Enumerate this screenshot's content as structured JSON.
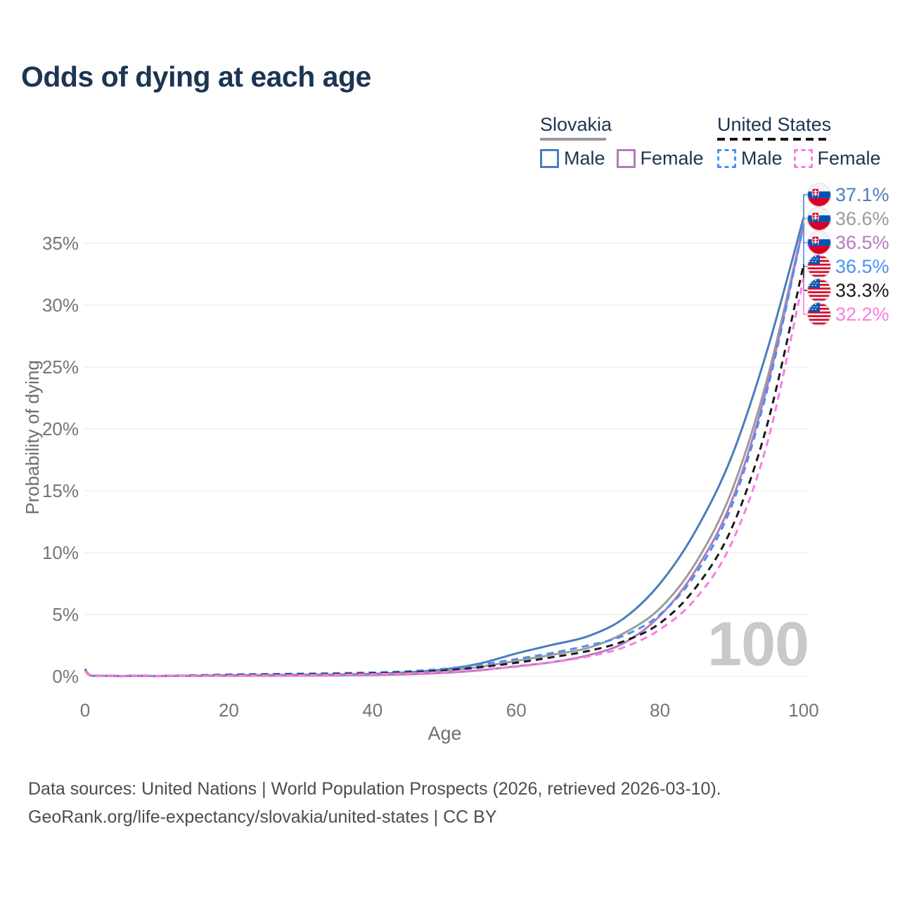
{
  "title": "Odds of dying at each age",
  "legend": {
    "groups": [
      {
        "label": "Slovakia",
        "line_style": "solid",
        "items": [
          {
            "label": "Male"
          },
          {
            "label": "Female"
          }
        ]
      },
      {
        "label": "United States",
        "line_style": "dashed",
        "items": [
          {
            "label": "Male"
          },
          {
            "label": "Female"
          }
        ]
      }
    ]
  },
  "chart_data": {
    "type": "line",
    "title": "Odds of dying at each age",
    "xlabel": "Age",
    "ylabel": "Probability of dying",
    "xlim": [
      0,
      100
    ],
    "ylim": [
      0,
      37.5
    ],
    "xticks": [
      0,
      20,
      40,
      60,
      80,
      100
    ],
    "yticks": [
      0,
      5,
      10,
      15,
      20,
      25,
      30,
      35
    ],
    "ytick_format": "percent",
    "grid": true,
    "legend_position": "top-right",
    "watermark": "100",
    "x": [
      0,
      1,
      5,
      10,
      15,
      20,
      25,
      30,
      35,
      40,
      45,
      50,
      55,
      60,
      65,
      70,
      75,
      80,
      85,
      90,
      95,
      100
    ],
    "series": [
      {
        "name": "Slovakia Male",
        "country": "Slovakia",
        "sex": "Male",
        "color": "#4b7dbd",
        "dash": "solid",
        "flag": "sk",
        "end_label": "37.1%",
        "values": [
          0.55,
          0.05,
          0.02,
          0.02,
          0.05,
          0.09,
          0.11,
          0.13,
          0.16,
          0.21,
          0.33,
          0.57,
          1.05,
          1.85,
          2.55,
          3.25,
          4.7,
          7.5,
          11.8,
          17.8,
          26.5,
          37.1
        ]
      },
      {
        "name": "Slovakia Overall",
        "country": "Slovakia",
        "sex": "Both",
        "color": "#9b9b9b",
        "dash": "solid",
        "flag": "sk",
        "end_label": "36.6%",
        "values": [
          0.5,
          0.04,
          0.02,
          0.02,
          0.04,
          0.07,
          0.08,
          0.1,
          0.12,
          0.16,
          0.25,
          0.43,
          0.78,
          1.25,
          1.75,
          2.3,
          3.5,
          5.5,
          9.2,
          15.0,
          24.2,
          36.6
        ]
      },
      {
        "name": "Slovakia Female",
        "country": "Slovakia",
        "sex": "Female",
        "color": "#b57bbd",
        "dash": "solid",
        "flag": "sk",
        "end_label": "36.5%",
        "values": [
          0.45,
          0.04,
          0.01,
          0.01,
          0.03,
          0.04,
          0.05,
          0.06,
          0.08,
          0.11,
          0.17,
          0.29,
          0.5,
          0.82,
          1.15,
          1.7,
          2.7,
          4.9,
          8.6,
          14.2,
          23.6,
          36.5
        ]
      },
      {
        "name": "United States Male",
        "country": "United States",
        "sex": "Male",
        "color": "#4b90f2",
        "dash": "dashed",
        "flag": "us",
        "end_label": "36.5%",
        "values": [
          0.6,
          0.04,
          0.02,
          0.03,
          0.08,
          0.15,
          0.19,
          0.22,
          0.26,
          0.32,
          0.42,
          0.62,
          0.95,
          1.4,
          1.9,
          2.5,
          3.3,
          5.0,
          8.3,
          13.8,
          23.3,
          36.5
        ]
      },
      {
        "name": "United States Overall",
        "country": "United States",
        "sex": "Both",
        "color": "#1a1a1a",
        "dash": "dashed",
        "flag": "us",
        "end_label": "33.3%",
        "values": [
          0.55,
          0.04,
          0.02,
          0.03,
          0.06,
          0.11,
          0.14,
          0.17,
          0.2,
          0.25,
          0.33,
          0.48,
          0.75,
          1.1,
          1.55,
          2.05,
          2.85,
          4.3,
          7.2,
          12.0,
          20.5,
          33.3
        ]
      },
      {
        "name": "United States Female",
        "country": "United States",
        "sex": "Female",
        "color": "#fa7ce6",
        "dash": "dashed",
        "flag": "us",
        "end_label": "32.2%",
        "values": [
          0.5,
          0.03,
          0.01,
          0.02,
          0.04,
          0.07,
          0.09,
          0.11,
          0.14,
          0.18,
          0.25,
          0.36,
          0.56,
          0.78,
          1.15,
          1.6,
          2.35,
          3.8,
          6.3,
          10.8,
          19.0,
          32.2
        ]
      }
    ]
  },
  "footer": {
    "line1": "Data sources: United Nations | World Population Prospects (2026, retrieved 2026-03-10).",
    "line2": "GeoRank.org/life-expectancy/slovakia/united-states | CC BY"
  },
  "colors": {
    "title": "#1c3552",
    "legend_text": "#1c3552",
    "slovakia_underline": "#9b9b9b",
    "us_underline": "#141414",
    "axis_text": "#757575",
    "axis_title": "#6e6e6e",
    "grid": "#ececec",
    "watermark": "#c9c9c9",
    "footer_text": "#4c4c4c",
    "flag_blue": "#0052b4",
    "flag_red": "#d80027"
  }
}
